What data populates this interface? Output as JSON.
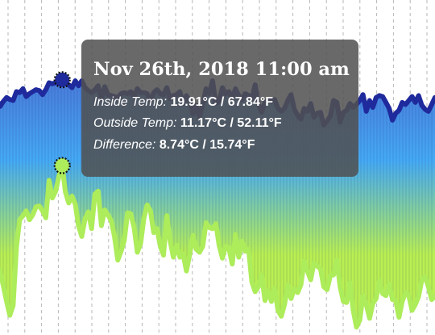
{
  "chart_data": {
    "type": "area",
    "title": "",
    "xlabel": "",
    "ylabel": "",
    "ylim": [
      -6,
      28
    ],
    "grid": "vertical dashed lines",
    "legend": "none",
    "colors": {
      "inside_line": "#1f2a9c",
      "outside_line": "#adec5a",
      "fill_top": "#4b58c6",
      "fill_mid": "#45aaf4",
      "fill_bottom": "#b9ef52",
      "gridline": "#9a9a9a"
    },
    "x": [
      0,
      1,
      2,
      3,
      4,
      5,
      6,
      7,
      8,
      9,
      10,
      11,
      12,
      13,
      14,
      15,
      16,
      17,
      18,
      19,
      20,
      21,
      22,
      23,
      24,
      25,
      26,
      27,
      28,
      29,
      30,
      31,
      32,
      33,
      34,
      35,
      36,
      37,
      38,
      39,
      40,
      41,
      42,
      43,
      44,
      45,
      46,
      47,
      48,
      49,
      50,
      51,
      52,
      53,
      54,
      55,
      56,
      57,
      58,
      59,
      60,
      61,
      62,
      63,
      64,
      65,
      66,
      67,
      68,
      69,
      70,
      71,
      72,
      73,
      74,
      75,
      76,
      77,
      78,
      79,
      80,
      81,
      82,
      83,
      84,
      85,
      86,
      87,
      88,
      89,
      90,
      91,
      92,
      93,
      94,
      95,
      96,
      97,
      98,
      99,
      100,
      101,
      102,
      103,
      104,
      105,
      106,
      107,
      108,
      109,
      110,
      111,
      112,
      113,
      114,
      115,
      116,
      117,
      118,
      119,
      120,
      121,
      122,
      123,
      124,
      125,
      126,
      127,
      128,
      129,
      130,
      131,
      132,
      133,
      134,
      135
    ],
    "series": [
      {
        "key": "inside",
        "values": [
          17.9,
          17.2,
          17.7,
          18.1,
          17.9,
          17.8,
          18.7,
          18.6,
          19.0,
          18.2,
          18.5,
          18.7,
          18.9,
          18.8,
          18.4,
          18.9,
          19.6,
          19.5,
          19.6,
          19.9,
          19.9,
          19.6,
          19.4,
          19.1,
          19.8,
          19.3,
          19.8,
          19.1,
          18.8,
          18.6,
          18.9,
          19.3,
          18.0,
          19.2,
          18.4,
          18.3,
          18.2,
          18.1,
          18.5,
          18.6,
          18.5,
          18.7,
          18.2,
          19.0,
          18.6,
          18.6,
          18.5,
          17.8,
          18.6,
          18.9,
          18.5,
          18.4,
          19.1,
          18.0,
          18.3,
          18.4,
          18.7,
          17.5,
          18.3,
          17.8,
          16.4,
          17.3,
          16.1,
          17.4,
          19.0,
          18.5,
          19.8,
          17.5,
          17.7,
          19.1,
          18.5,
          18.7,
          18.0,
          19.0,
          18.3,
          17.9,
          18.5,
          18.3,
          17.9,
          19.4,
          17.5,
          16.6,
          17.6,
          17.9,
          17.7,
          17.9,
          17.0,
          16.7,
          17.0,
          17.8,
          18.4,
          16.9,
          16.3,
          15.9,
          17.0,
          16.7,
          17.5,
          16.1,
          16.5,
          16.6,
          15.3,
          15.7,
          16.2,
          17.8,
          17.6,
          15.6,
          16.6,
          16.8,
          17.5,
          17.1,
          17.4,
          17.8,
          18.4,
          16.7,
          17.8,
          17.1,
          18.1,
          18.3,
          18.2,
          17.6,
          17.0,
          15.8,
          16.5,
          16.8,
          17.6,
          17.4,
          17.8,
          18.2,
          17.6,
          18.3,
          17.3,
          16.9,
          16.7,
          17.4,
          18.1,
          17.9
        ]
      },
      {
        "key": "outside",
        "values": [
          -0.9,
          0.5,
          -1.0,
          -2.6,
          -4.0,
          -3.0,
          2.9,
          5.7,
          6.1,
          6.6,
          5.7,
          6.2,
          7.0,
          7.1,
          6.6,
          5.9,
          9.7,
          7.9,
          8.6,
          10.1,
          11.2,
          8.5,
          7.4,
          8.1,
          7.3,
          5.1,
          4.0,
          5.8,
          6.5,
          4.8,
          8.3,
          8.6,
          5.1,
          6.7,
          6.2,
          5.6,
          4.0,
          1.6,
          2.5,
          3.6,
          6.4,
          6.3,
          4.9,
          2.4,
          3.3,
          5.9,
          7.2,
          6.6,
          4.4,
          4.8,
          3.0,
          2.1,
          6.1,
          3.6,
          1.9,
          3.1,
          1.9,
          2.2,
          0.5,
          2.2,
          4.1,
          2.7,
          2.4,
          3.0,
          5.4,
          4.9,
          4.8,
          5.3,
          3.1,
          1.8,
          3.0,
          2.8,
          1.2,
          4.2,
          1.9,
          3.5,
          2.5,
          2.7,
          -0.6,
          -1.6,
          -1.1,
          0.1,
          -2.5,
          -1.5,
          -2.6,
          -1.3,
          -3.5,
          -4.1,
          -2.9,
          -0.9,
          -2.3,
          -1.3,
          -1.7,
          -0.9,
          1.5,
          0.5,
          -0.4,
          1.3,
          1.0,
          0.7,
          -1.1,
          -1.4,
          0.0,
          0.1,
          1.6,
          -1.1,
          -2.6,
          -2.7,
          -0.7,
          -3.5,
          -5.2,
          -4.5,
          -2.0,
          -2.9,
          -4.3,
          -2.8,
          -2.3,
          -0.5,
          -1.8,
          -2.0,
          -0.8,
          -2.4,
          -2.5,
          -4.2,
          -2.6,
          -1.7,
          -2.0,
          -3.5,
          -2.9,
          -2.1,
          -0.4,
          -0.1,
          -1.1,
          -2.4,
          -2.1,
          -1.6
        ]
      }
    ],
    "highlighted_index": 20
  },
  "tooltip": {
    "title": "Nov 26th, 2018 11:00 am",
    "rows": [
      {
        "label": "Inside Temp:",
        "value": "19.91°C / 67.84°F"
      },
      {
        "label": "Outside Temp:",
        "value": "11.17°C / 52.11°F"
      },
      {
        "label": "Difference:",
        "value": "8.74°C / 15.74°F"
      }
    ]
  }
}
